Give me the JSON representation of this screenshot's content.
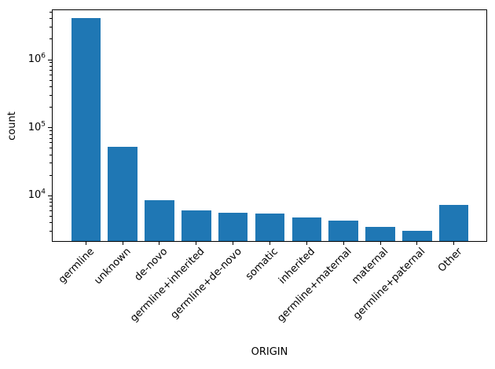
{
  "figure": {
    "background": "#ffffff",
    "text_color": "#000000"
  },
  "chart_data": {
    "type": "bar",
    "xlabel": "ORIGIN",
    "ylabel": "count",
    "yscale": "log",
    "grid": false,
    "categories": [
      "germline",
      "unknown",
      "de-novo",
      "germline+inherited",
      "germline+de-novo",
      "somatic",
      "inherited",
      "germline+maternal",
      "maternal",
      "germline+paternal",
      "Other"
    ],
    "values": [
      4050000,
      53000,
      8500,
      6100,
      5600,
      5500,
      4850,
      4250,
      3460,
      3030,
      7400
    ],
    "ylim": [
      2100,
      5480000
    ],
    "yticks": [
      {
        "value": 10000,
        "base": "10",
        "exp": "4"
      },
      {
        "value": 100000,
        "base": "10",
        "exp": "5"
      },
      {
        "value": 1000000,
        "base": "10",
        "exp": "6"
      }
    ],
    "minor_tick_mantissas": [
      2,
      3,
      4,
      5,
      6,
      7,
      8,
      9
    ],
    "bar_color": "#1f77b4"
  }
}
